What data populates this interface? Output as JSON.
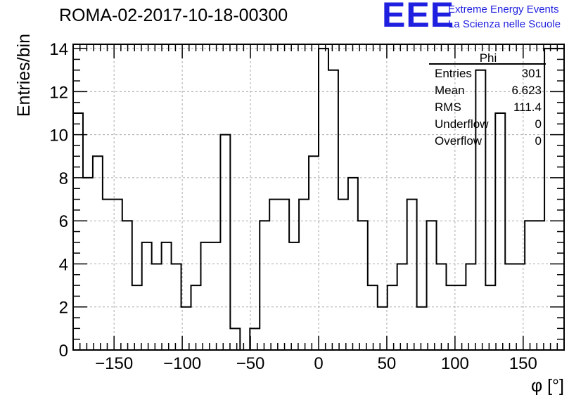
{
  "header": {
    "title": "ROMA-02-2017-10-18-00300",
    "logo_text": "EEE",
    "logo_line1": "Extreme Energy Events",
    "logo_line2": "La Scienza nelle Scuole"
  },
  "stats": {
    "name": "Phi",
    "rows": [
      {
        "label": "Entries",
        "value": "301"
      },
      {
        "label": "Mean",
        "value": "6.623"
      },
      {
        "label": "RMS",
        "value": "111.4"
      },
      {
        "label": "Underflow",
        "value": "0"
      },
      {
        "label": "Overflow",
        "value": "0"
      }
    ]
  },
  "colors": {
    "logo": "#1f1fdf",
    "line": "#000000",
    "grid": "#aaaaaa"
  },
  "chart_data": {
    "type": "bar",
    "histogram": true,
    "xlabel": "φ [°]",
    "ylabel": "Entries/bin",
    "xlim": [
      -180,
      180
    ],
    "ylim": [
      0,
      14.2
    ],
    "bin_width": 7.2,
    "grid": true,
    "x_ticks": [
      -150,
      -100,
      -50,
      0,
      50,
      100,
      150
    ],
    "x_tick_labels": [
      "−150",
      "−100",
      "−50",
      "0",
      "50",
      "100",
      "150"
    ],
    "y_ticks": [
      0,
      2,
      4,
      6,
      8,
      10,
      12,
      14
    ],
    "y_tick_labels": [
      "0",
      "2",
      "4",
      "6",
      "8",
      "10",
      "12",
      "14"
    ],
    "values": [
      11,
      8,
      9,
      7,
      7,
      6,
      3,
      5,
      4,
      5,
      4,
      2,
      3,
      5,
      5,
      10,
      1,
      0,
      1,
      6,
      7,
      7,
      5,
      7,
      9,
      14,
      13,
      7,
      8,
      6,
      3,
      2,
      3,
      4,
      7,
      2,
      6,
      4,
      3,
      3,
      4,
      13,
      3,
      11,
      4,
      4,
      6,
      6,
      14,
      14
    ]
  }
}
